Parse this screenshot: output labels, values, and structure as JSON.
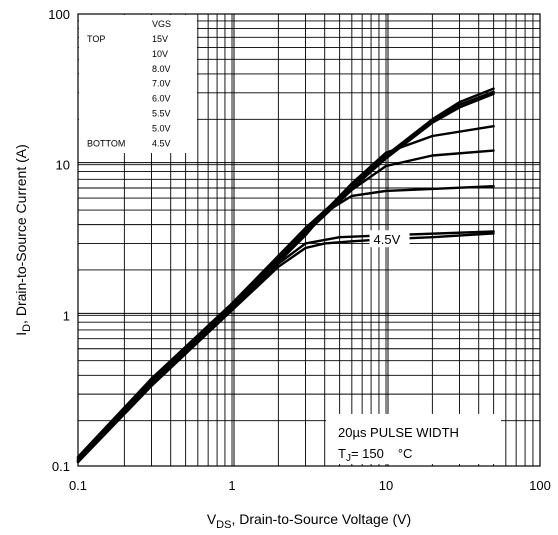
{
  "chart_data": {
    "type": "line",
    "title": "",
    "x_scale": "log",
    "y_scale": "log",
    "xlim": [
      0.1,
      100
    ],
    "ylim": [
      0.1,
      100
    ],
    "x_ticks": [
      "0.1",
      "1",
      "10",
      "100"
    ],
    "y_ticks": [
      "0.1",
      "1",
      "10",
      "100"
    ],
    "xlabel": {
      "main": "V",
      "sub": "DS",
      "rest": ", Drain-to-Source Voltage (V)"
    },
    "ylabel": {
      "main": "I",
      "sub": "D",
      "rest": ", Drain-to-Source Current (A)"
    },
    "grid": true,
    "legend": {
      "position": "top-left",
      "header": "VGS",
      "top_label": "TOP",
      "bottom_label": "BOTTOM",
      "entries": [
        "15V",
        "10V",
        "8.0V",
        "7.0V",
        "6.0V",
        "5.5V",
        "5.0V",
        "4.5V"
      ]
    },
    "annotation_curve_label": "4.5V",
    "note": {
      "line1": "20µs PULSE WIDTH",
      "line2_prefix": "T",
      "line2_sub": "J",
      "line2_value": "= 150",
      "line2_unit": "°C"
    },
    "series": [
      {
        "name": "15V",
        "x": [
          0.1,
          0.3,
          1,
          3,
          10,
          20,
          30,
          50
        ],
        "y": [
          0.115,
          0.38,
          1.2,
          3.8,
          11.5,
          20,
          26,
          32
        ]
      },
      {
        "name": "10V",
        "x": [
          0.1,
          0.3,
          1,
          3,
          10,
          20,
          30,
          50
        ],
        "y": [
          0.113,
          0.37,
          1.18,
          3.75,
          11.2,
          19.5,
          25,
          30.5
        ]
      },
      {
        "name": "8.0V",
        "x": [
          0.1,
          0.3,
          1,
          3,
          10,
          20,
          30,
          50
        ],
        "y": [
          0.111,
          0.365,
          1.16,
          3.7,
          11,
          19,
          24,
          29.5
        ]
      },
      {
        "name": "7.0V",
        "x": [
          0.1,
          0.3,
          1,
          3,
          6,
          10,
          20,
          50
        ],
        "y": [
          0.11,
          0.36,
          1.15,
          3.6,
          7.5,
          12,
          15.5,
          18
        ]
      },
      {
        "name": "6.0V",
        "x": [
          0.1,
          0.3,
          1,
          3,
          6,
          10,
          20,
          50
        ],
        "y": [
          0.109,
          0.355,
          1.13,
          3.5,
          6.8,
          9.8,
          11.5,
          12.4
        ]
      },
      {
        "name": "5.5V",
        "x": [
          0.1,
          0.3,
          1,
          3,
          4,
          6,
          10,
          20,
          50
        ],
        "y": [
          0.108,
          0.35,
          1.11,
          3.4,
          4.8,
          6.2,
          6.7,
          6.9,
          7.2
        ]
      },
      {
        "name": "5.0V",
        "x": [
          0.1,
          0.3,
          1,
          2,
          3,
          5,
          10,
          50
        ],
        "y": [
          0.107,
          0.345,
          1.1,
          2.2,
          3.0,
          3.3,
          3.4,
          3.6
        ]
      },
      {
        "name": "4.5V",
        "x": [
          0.1,
          0.3,
          1,
          2,
          3,
          4,
          6,
          10,
          20,
          50
        ],
        "y": [
          0.106,
          0.34,
          1.08,
          2.1,
          2.8,
          3.0,
          3.1,
          3.2,
          3.3,
          3.5
        ]
      }
    ]
  }
}
